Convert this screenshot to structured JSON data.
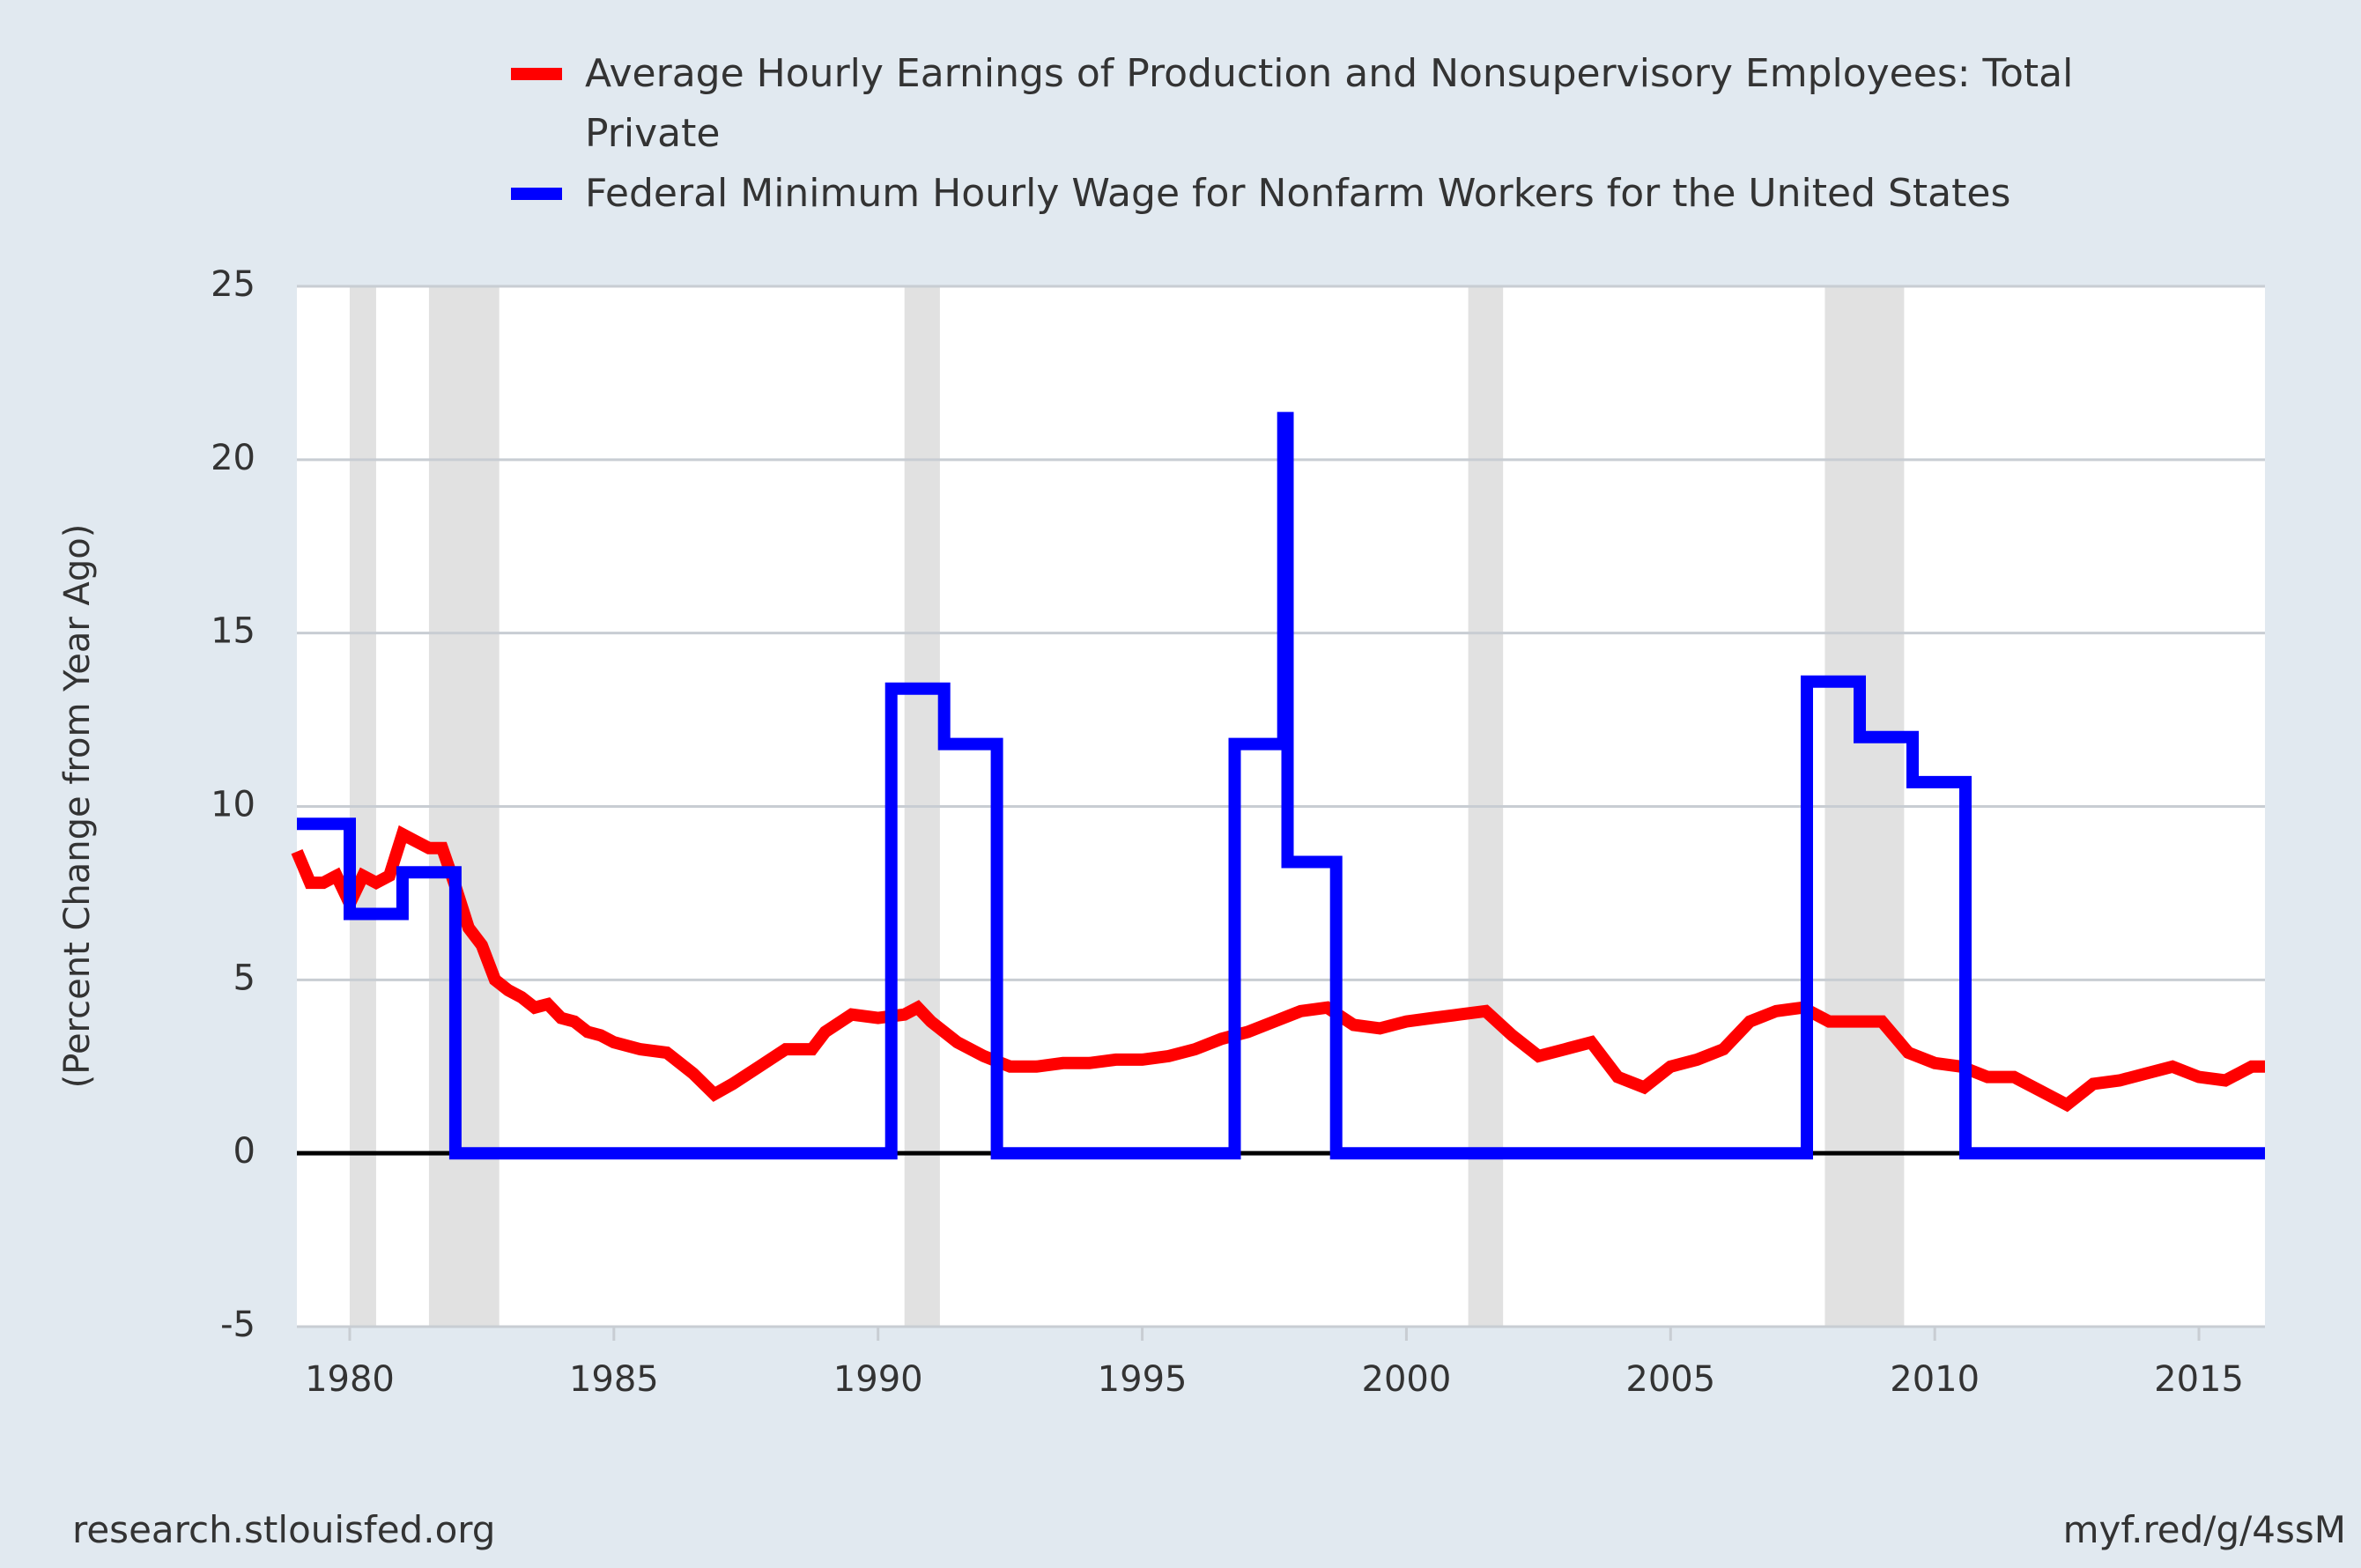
{
  "chart_data": {
    "type": "line",
    "y_label": "(Percent Change from Year Ago)",
    "source": "research.stlouisfed.org",
    "link": "myf.red/g/4ssM",
    "xlim": [
      1979.0,
      2016.25
    ],
    "xticks": [
      1980,
      1985,
      1990,
      1995,
      2000,
      2005,
      2010,
      2015
    ],
    "ylim": [
      -5,
      25
    ],
    "yticks": [
      -5,
      0,
      5,
      10,
      15,
      20,
      25
    ],
    "grid": true,
    "recessions": [
      [
        1980.0,
        1980.5
      ],
      [
        1981.5,
        1982.83
      ],
      [
        1990.5,
        1991.17
      ],
      [
        2001.17,
        2001.83
      ],
      [
        2007.92,
        2009.42
      ]
    ],
    "series": [
      {
        "name": "Average Hourly Earnings of Production and Nonsupervisory Employees: Total Private",
        "color": "#ff0000",
        "x": [
          1979.0,
          1979.25,
          1979.5,
          1979.75,
          1980.0,
          1980.25,
          1980.5,
          1980.75,
          1981.0,
          1981.25,
          1981.5,
          1981.75,
          1982.0,
          1982.25,
          1982.5,
          1982.75,
          1983.0,
          1983.25,
          1983.5,
          1983.75,
          1984.0,
          1984.25,
          1984.5,
          1984.75,
          1985.0,
          1985.5,
          1986.0,
          1986.5,
          1986.9,
          1987.25,
          1987.75,
          1988.25,
          1988.75,
          1989.0,
          1989.5,
          1990.0,
          1990.5,
          1990.75,
          1991.0,
          1991.5,
          1992.0,
          1992.5,
          1993.0,
          1993.5,
          1994.0,
          1994.5,
          1995.0,
          1995.5,
          1996.0,
          1996.5,
          1997.0,
          1997.5,
          1998.0,
          1998.5,
          1999.0,
          1999.5,
          2000.0,
          2000.5,
          2001.0,
          2001.5,
          2002.0,
          2002.5,
          2003.0,
          2003.5,
          2004.0,
          2004.5,
          2005.0,
          2005.5,
          2006.0,
          2006.5,
          2007.0,
          2007.5,
          2008.0,
          2008.5,
          2009.0,
          2009.5,
          2010.0,
          2010.5,
          2011.0,
          2011.5,
          2012.0,
          2012.5,
          2013.0,
          2013.5,
          2014.0,
          2014.5,
          2015.0,
          2015.5,
          2016.0,
          2016.25
        ],
        "values": [
          8.7,
          7.8,
          7.8,
          8.0,
          7.2,
          8.0,
          7.8,
          8.0,
          9.2,
          9.0,
          8.8,
          8.8,
          7.7,
          6.5,
          6.0,
          5.0,
          4.7,
          4.5,
          4.2,
          4.3,
          3.9,
          3.8,
          3.5,
          3.4,
          3.2,
          3.0,
          2.9,
          2.3,
          1.7,
          2.0,
          2.5,
          3.0,
          3.0,
          3.5,
          4.0,
          3.9,
          4.0,
          4.2,
          3.8,
          3.2,
          2.8,
          2.5,
          2.5,
          2.6,
          2.6,
          2.7,
          2.7,
          2.8,
          3.0,
          3.3,
          3.5,
          3.8,
          4.1,
          4.2,
          3.7,
          3.6,
          3.8,
          3.9,
          4.0,
          4.1,
          3.4,
          2.8,
          3.0,
          3.2,
          2.2,
          1.9,
          2.5,
          2.7,
          3.0,
          3.8,
          4.1,
          4.2,
          3.8,
          3.8,
          3.8,
          2.9,
          2.6,
          2.5,
          2.2,
          2.2,
          1.8,
          1.4,
          2.0,
          2.1,
          2.3,
          2.5,
          2.2,
          2.1,
          2.5,
          2.5
        ]
      },
      {
        "name": "Federal Minimum Hourly Wage for Nonfarm Workers for the United States",
        "color": "#0000ff",
        "x": [
          1979.0,
          1980.0,
          1980.0,
          1981.0,
          1981.0,
          1982.0,
          1982.0,
          1990.25,
          1990.25,
          1991.25,
          1991.25,
          1992.25,
          1992.25,
          1996.75,
          1996.75,
          1997.67,
          1997.67,
          1997.75,
          1997.75,
          1998.67,
          1998.67,
          2007.58,
          2007.58,
          2008.58,
          2008.58,
          2009.58,
          2009.58,
          2010.58,
          2010.58,
          2016.25
        ],
        "values": [
          9.5,
          9.5,
          6.9,
          6.9,
          8.1,
          8.1,
          0,
          0,
          13.4,
          13.4,
          11.8,
          11.8,
          0,
          0,
          11.8,
          11.8,
          21.2,
          21.2,
          8.4,
          8.4,
          0,
          0,
          13.6,
          13.6,
          12.0,
          12.0,
          10.7,
          10.7,
          0,
          0
        ]
      }
    ]
  }
}
